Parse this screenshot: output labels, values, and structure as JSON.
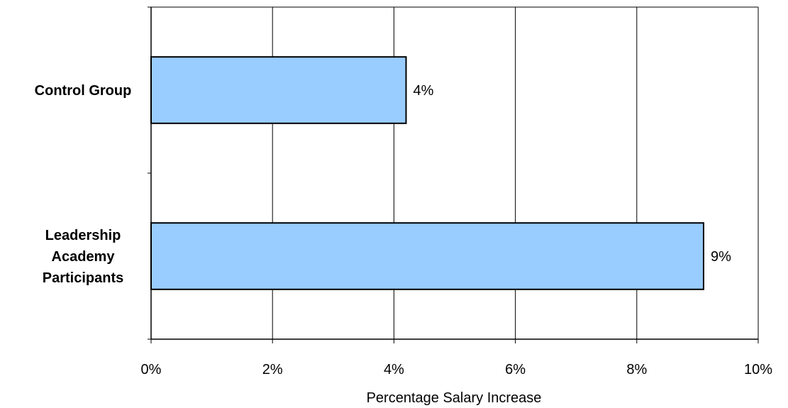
{
  "chart_data": {
    "type": "bar",
    "orientation": "horizontal",
    "categories": [
      "Control Group",
      "Leadership Academy Participants"
    ],
    "category_label_lines": [
      [
        "Control Group"
      ],
      [
        "Leadership",
        "Academy",
        "Participants"
      ]
    ],
    "values": [
      4.2,
      9.1
    ],
    "data_labels": [
      "4%",
      "9%"
    ],
    "xlabel": "Percentage Salary Increase",
    "ylabel": "",
    "title": "",
    "xlim": [
      0,
      10
    ],
    "x_ticks": [
      0,
      2,
      4,
      6,
      8,
      10
    ],
    "x_tick_labels": [
      "0%",
      "2%",
      "4%",
      "6%",
      "8%",
      "10%"
    ],
    "grid": "vertical",
    "bar_color": "#99CCFF",
    "bar_stroke": "#000000",
    "grid_color": "#000000"
  }
}
